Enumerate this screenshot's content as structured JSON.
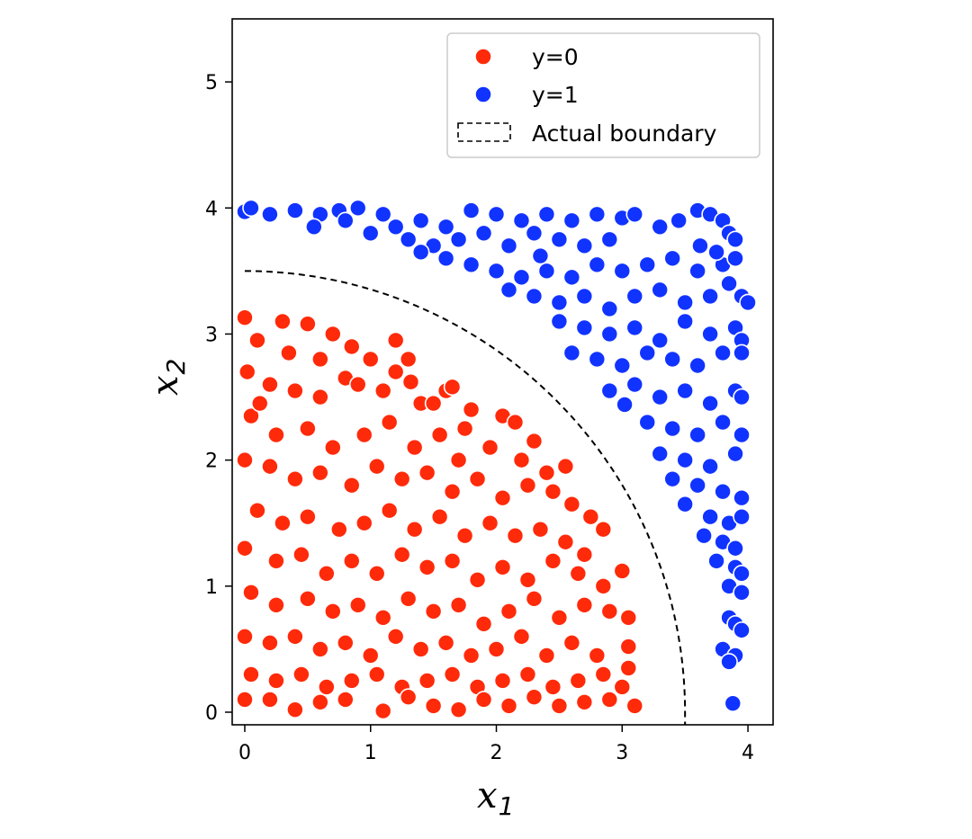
{
  "chart_data": {
    "type": "scatter",
    "title": "",
    "xlabel": {
      "base": "x",
      "sub": "1"
    },
    "ylabel": {
      "base": "x",
      "sub": "2"
    },
    "xlim": [
      -0.1,
      4.2
    ],
    "ylim": [
      -0.1,
      5.5
    ],
    "xticks": [
      "0",
      "1",
      "2",
      "3",
      "4"
    ],
    "yticks": [
      "0",
      "1",
      "2",
      "3",
      "4",
      "5"
    ],
    "grid": false,
    "legend_position": "top-right",
    "legend": [
      {
        "label": "y=0",
        "kind": "marker",
        "color": "#ff2a0a"
      },
      {
        "label": "y=1",
        "kind": "marker",
        "color": "#1133ff"
      },
      {
        "label": "Actual boundary",
        "kind": "dashed-box",
        "color": "#000000"
      }
    ],
    "boundary": {
      "shape": "quarter-circle",
      "radius": 3.5,
      "style": "dashed",
      "color": "#000000"
    },
    "series": [
      {
        "name": "y=0",
        "color": "#ff2a0a",
        "points": [
          [
            0.0,
            3.13
          ],
          [
            0.1,
            2.95
          ],
          [
            0.3,
            3.1
          ],
          [
            0.5,
            3.08
          ],
          [
            0.7,
            3.0
          ],
          [
            0.85,
            2.9
          ],
          [
            1.0,
            2.8
          ],
          [
            1.2,
            2.7
          ],
          [
            1.3,
            2.8
          ],
          [
            0.02,
            2.7
          ],
          [
            0.2,
            2.6
          ],
          [
            0.4,
            2.55
          ],
          [
            0.6,
            2.5
          ],
          [
            0.8,
            2.65
          ],
          [
            1.1,
            2.55
          ],
          [
            1.4,
            2.45
          ],
          [
            1.6,
            2.55
          ],
          [
            1.8,
            2.4
          ],
          [
            2.05,
            2.35
          ],
          [
            2.15,
            2.3
          ],
          [
            0.05,
            2.35
          ],
          [
            0.25,
            2.2
          ],
          [
            0.5,
            2.25
          ],
          [
            0.7,
            2.1
          ],
          [
            0.95,
            2.2
          ],
          [
            1.15,
            2.3
          ],
          [
            1.35,
            2.1
          ],
          [
            1.55,
            2.2
          ],
          [
            1.75,
            2.25
          ],
          [
            1.95,
            2.1
          ],
          [
            2.2,
            2.0
          ],
          [
            2.4,
            1.9
          ],
          [
            0.0,
            2.0
          ],
          [
            0.2,
            1.95
          ],
          [
            0.4,
            1.85
          ],
          [
            0.6,
            1.9
          ],
          [
            0.85,
            1.8
          ],
          [
            1.05,
            1.95
          ],
          [
            1.25,
            1.85
          ],
          [
            1.45,
            1.9
          ],
          [
            1.65,
            1.75
          ],
          [
            1.85,
            1.85
          ],
          [
            2.05,
            1.7
          ],
          [
            2.25,
            1.8
          ],
          [
            2.45,
            1.75
          ],
          [
            2.6,
            1.65
          ],
          [
            0.1,
            1.6
          ],
          [
            0.3,
            1.5
          ],
          [
            0.5,
            1.55
          ],
          [
            0.75,
            1.45
          ],
          [
            0.95,
            1.5
          ],
          [
            1.15,
            1.6
          ],
          [
            1.35,
            1.45
          ],
          [
            1.55,
            1.55
          ],
          [
            1.75,
            1.4
          ],
          [
            1.95,
            1.5
          ],
          [
            2.15,
            1.4
          ],
          [
            2.35,
            1.45
          ],
          [
            2.55,
            1.35
          ],
          [
            2.75,
            1.55
          ],
          [
            2.85,
            1.45
          ],
          [
            0.0,
            1.3
          ],
          [
            0.25,
            1.2
          ],
          [
            0.45,
            1.25
          ],
          [
            0.65,
            1.1
          ],
          [
            0.85,
            1.2
          ],
          [
            1.05,
            1.1
          ],
          [
            1.25,
            1.25
          ],
          [
            1.45,
            1.15
          ],
          [
            1.65,
            1.2
          ],
          [
            1.85,
            1.05
          ],
          [
            2.05,
            1.15
          ],
          [
            2.25,
            1.05
          ],
          [
            2.45,
            1.2
          ],
          [
            2.65,
            1.1
          ],
          [
            2.85,
            1.0
          ],
          [
            3.0,
            1.12
          ],
          [
            0.05,
            0.95
          ],
          [
            0.25,
            0.85
          ],
          [
            0.5,
            0.9
          ],
          [
            0.7,
            0.8
          ],
          [
            0.9,
            0.85
          ],
          [
            1.1,
            0.75
          ],
          [
            1.3,
            0.9
          ],
          [
            1.5,
            0.8
          ],
          [
            1.7,
            0.85
          ],
          [
            1.9,
            0.7
          ],
          [
            2.1,
            0.8
          ],
          [
            2.3,
            0.9
          ],
          [
            2.5,
            0.75
          ],
          [
            2.7,
            0.85
          ],
          [
            2.9,
            0.8
          ],
          [
            3.05,
            0.75
          ],
          [
            0.0,
            0.6
          ],
          [
            0.2,
            0.55
          ],
          [
            0.4,
            0.6
          ],
          [
            0.6,
            0.5
          ],
          [
            0.8,
            0.55
          ],
          [
            1.0,
            0.45
          ],
          [
            1.2,
            0.6
          ],
          [
            1.4,
            0.5
          ],
          [
            1.6,
            0.55
          ],
          [
            1.8,
            0.45
          ],
          [
            2.0,
            0.5
          ],
          [
            2.2,
            0.6
          ],
          [
            2.4,
            0.45
          ],
          [
            2.6,
            0.55
          ],
          [
            2.8,
            0.45
          ],
          [
            3.05,
            0.52
          ],
          [
            0.05,
            0.3
          ],
          [
            0.25,
            0.25
          ],
          [
            0.45,
            0.3
          ],
          [
            0.65,
            0.2
          ],
          [
            0.85,
            0.25
          ],
          [
            1.05,
            0.3
          ],
          [
            1.25,
            0.2
          ],
          [
            1.45,
            0.25
          ],
          [
            1.65,
            0.3
          ],
          [
            1.85,
            0.2
          ],
          [
            2.05,
            0.25
          ],
          [
            2.25,
            0.3
          ],
          [
            2.45,
            0.2
          ],
          [
            2.65,
            0.25
          ],
          [
            2.85,
            0.3
          ],
          [
            3.0,
            0.2
          ],
          [
            0.0,
            0.1
          ],
          [
            0.2,
            0.1
          ],
          [
            0.4,
            0.02
          ],
          [
            0.6,
            0.08
          ],
          [
            0.8,
            0.1
          ],
          [
            1.1,
            0.01
          ],
          [
            1.3,
            0.12
          ],
          [
            1.5,
            0.05
          ],
          [
            1.7,
            0.02
          ],
          [
            1.9,
            0.1
          ],
          [
            2.1,
            0.05
          ],
          [
            2.3,
            0.12
          ],
          [
            2.5,
            0.05
          ],
          [
            2.7,
            0.08
          ],
          [
            2.9,
            0.1
          ],
          [
            3.1,
            0.05
          ],
          [
            1.65,
            2.58
          ],
          [
            1.5,
            2.45
          ],
          [
            1.32,
            2.62
          ],
          [
            0.12,
            2.45
          ],
          [
            0.35,
            2.85
          ],
          [
            0.6,
            2.8
          ],
          [
            0.9,
            2.6
          ],
          [
            1.2,
            2.95
          ],
          [
            1.7,
            2.0
          ],
          [
            2.3,
            2.15
          ],
          [
            2.55,
            1.95
          ],
          [
            2.7,
            1.25
          ],
          [
            3.05,
            0.35
          ]
        ]
      },
      {
        "name": "y=1",
        "color": "#1133ff",
        "points": [
          [
            0.0,
            3.97
          ],
          [
            0.05,
            4.0
          ],
          [
            0.2,
            3.95
          ],
          [
            0.4,
            3.98
          ],
          [
            0.6,
            3.95
          ],
          [
            0.75,
            3.98
          ],
          [
            0.9,
            4.0
          ],
          [
            1.1,
            3.95
          ],
          [
            1.2,
            3.85
          ],
          [
            1.4,
            3.9
          ],
          [
            1.6,
            3.85
          ],
          [
            1.8,
            3.98
          ],
          [
            2.0,
            3.95
          ],
          [
            2.2,
            3.9
          ],
          [
            2.4,
            3.95
          ],
          [
            2.6,
            3.9
          ],
          [
            2.8,
            3.95
          ],
          [
            3.0,
            3.92
          ],
          [
            3.1,
            3.95
          ],
          [
            0.55,
            3.85
          ],
          [
            0.8,
            3.9
          ],
          [
            1.0,
            3.8
          ],
          [
            1.3,
            3.75
          ],
          [
            1.5,
            3.7
          ],
          [
            1.7,
            3.75
          ],
          [
            1.9,
            3.8
          ],
          [
            2.1,
            3.7
          ],
          [
            2.3,
            3.8
          ],
          [
            2.5,
            3.75
          ],
          [
            2.7,
            3.7
          ],
          [
            2.9,
            3.75
          ],
          [
            3.3,
            3.85
          ],
          [
            3.45,
            3.9
          ],
          [
            3.6,
            3.98
          ],
          [
            3.7,
            3.95
          ],
          [
            3.8,
            3.9
          ],
          [
            3.85,
            3.8
          ],
          [
            3.9,
            3.75
          ],
          [
            1.4,
            3.65
          ],
          [
            1.6,
            3.6
          ],
          [
            1.8,
            3.55
          ],
          [
            2.0,
            3.5
          ],
          [
            2.2,
            3.45
          ],
          [
            2.4,
            3.5
          ],
          [
            2.6,
            3.45
          ],
          [
            2.8,
            3.55
          ],
          [
            3.0,
            3.5
          ],
          [
            3.2,
            3.55
          ],
          [
            3.4,
            3.6
          ],
          [
            3.6,
            3.5
          ],
          [
            3.8,
            3.55
          ],
          [
            3.9,
            3.6
          ],
          [
            2.1,
            3.35
          ],
          [
            2.3,
            3.3
          ],
          [
            2.5,
            3.25
          ],
          [
            2.7,
            3.3
          ],
          [
            2.9,
            3.2
          ],
          [
            3.1,
            3.3
          ],
          [
            3.3,
            3.35
          ],
          [
            3.5,
            3.25
          ],
          [
            3.7,
            3.3
          ],
          [
            3.85,
            3.4
          ],
          [
            3.95,
            3.3
          ],
          [
            4.0,
            3.25
          ],
          [
            2.5,
            3.1
          ],
          [
            2.7,
            3.05
          ],
          [
            2.9,
            3.0
          ],
          [
            3.1,
            3.05
          ],
          [
            3.3,
            2.95
          ],
          [
            3.5,
            3.1
          ],
          [
            3.7,
            3.0
          ],
          [
            3.9,
            3.05
          ],
          [
            3.95,
            2.95
          ],
          [
            2.6,
            2.85
          ],
          [
            2.8,
            2.8
          ],
          [
            3.0,
            2.75
          ],
          [
            3.2,
            2.85
          ],
          [
            3.4,
            2.8
          ],
          [
            3.6,
            2.75
          ],
          [
            3.8,
            2.85
          ],
          [
            3.95,
            2.85
          ],
          [
            2.9,
            2.55
          ],
          [
            3.1,
            2.6
          ],
          [
            3.3,
            2.5
          ],
          [
            3.5,
            2.55
          ],
          [
            3.7,
            2.45
          ],
          [
            3.9,
            2.55
          ],
          [
            3.95,
            2.5
          ],
          [
            3.2,
            2.3
          ],
          [
            3.4,
            2.25
          ],
          [
            3.6,
            2.2
          ],
          [
            3.8,
            2.3
          ],
          [
            3.95,
            2.2
          ],
          [
            3.3,
            2.05
          ],
          [
            3.5,
            2.0
          ],
          [
            3.7,
            1.95
          ],
          [
            3.9,
            2.05
          ],
          [
            3.4,
            1.85
          ],
          [
            3.6,
            1.8
          ],
          [
            3.8,
            1.75
          ],
          [
            3.95,
            1.7
          ],
          [
            3.5,
            1.65
          ],
          [
            3.7,
            1.55
          ],
          [
            3.85,
            1.5
          ],
          [
            3.95,
            1.55
          ],
          [
            3.65,
            1.4
          ],
          [
            3.8,
            1.35
          ],
          [
            3.9,
            1.3
          ],
          [
            3.75,
            1.2
          ],
          [
            3.9,
            1.15
          ],
          [
            3.95,
            1.1
          ],
          [
            3.85,
            1.0
          ],
          [
            3.95,
            0.95
          ],
          [
            3.85,
            0.75
          ],
          [
            3.9,
            0.7
          ],
          [
            3.95,
            0.65
          ],
          [
            3.8,
            0.5
          ],
          [
            3.9,
            0.45
          ],
          [
            3.85,
            0.4
          ],
          [
            3.88,
            0.07
          ],
          [
            3.02,
            2.44
          ],
          [
            3.62,
            3.7
          ],
          [
            3.75,
            3.65
          ],
          [
            2.35,
            3.62
          ]
        ]
      }
    ]
  }
}
